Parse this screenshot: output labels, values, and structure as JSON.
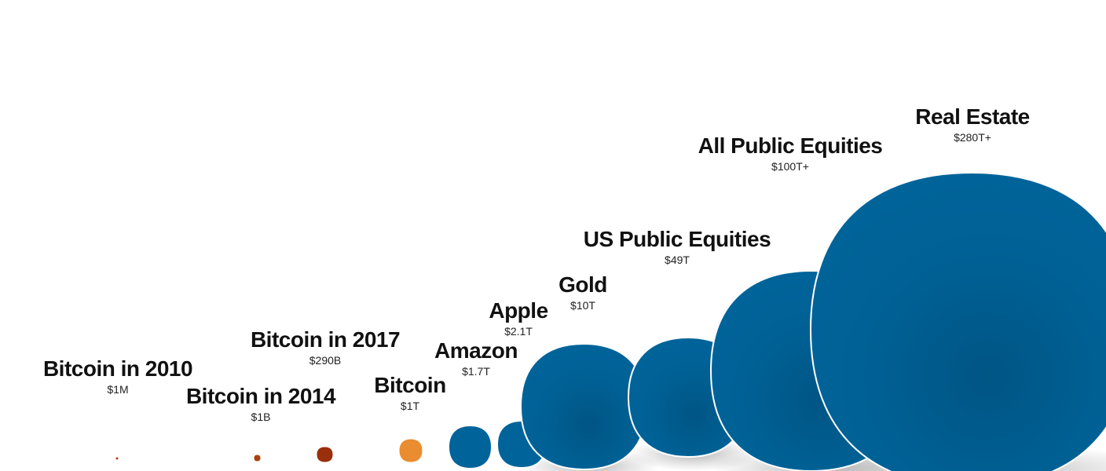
{
  "chart_data": {
    "type": "bubble",
    "title": "",
    "series": [
      {
        "points": [
          {
            "label": "Bitcoin in 2010",
            "value_text": "$1M",
            "value_usd": 1000000,
            "color": "#cc3311"
          },
          {
            "label": "Bitcoin in 2014",
            "value_text": "$1B",
            "value_usd": 1000000000,
            "color": "#a8420f"
          },
          {
            "label": "Bitcoin in 2017",
            "value_text": "$290B",
            "value_usd": 290000000000,
            "color": "#9a2f0c"
          },
          {
            "label": "Bitcoin",
            "value_text": "$1T",
            "value_usd": 1000000000000,
            "color": "#ea8c30"
          },
          {
            "label": "Amazon",
            "value_text": "$1.7T",
            "value_usd": 1700000000000,
            "color": "#00649a"
          },
          {
            "label": "Apple",
            "value_text": "$2.1T",
            "value_usd": 2100000000000,
            "color": "#00649a"
          },
          {
            "label": "Gold",
            "value_text": "$10T",
            "value_usd": 10000000000000,
            "color": "#00649a"
          },
          {
            "label": "US Public Equities",
            "value_text": "$49T",
            "value_usd": 49000000000000,
            "color": "#00649a"
          },
          {
            "label": "All Public Equities",
            "value_text": "$100T+",
            "value_usd": 100000000000000,
            "color": "#00649a"
          },
          {
            "label": "Real Estate",
            "value_text": "$280T+",
            "value_usd": 280000000000000,
            "color": "#00649a"
          }
        ]
      }
    ],
    "legend": "none",
    "grid": false
  }
}
